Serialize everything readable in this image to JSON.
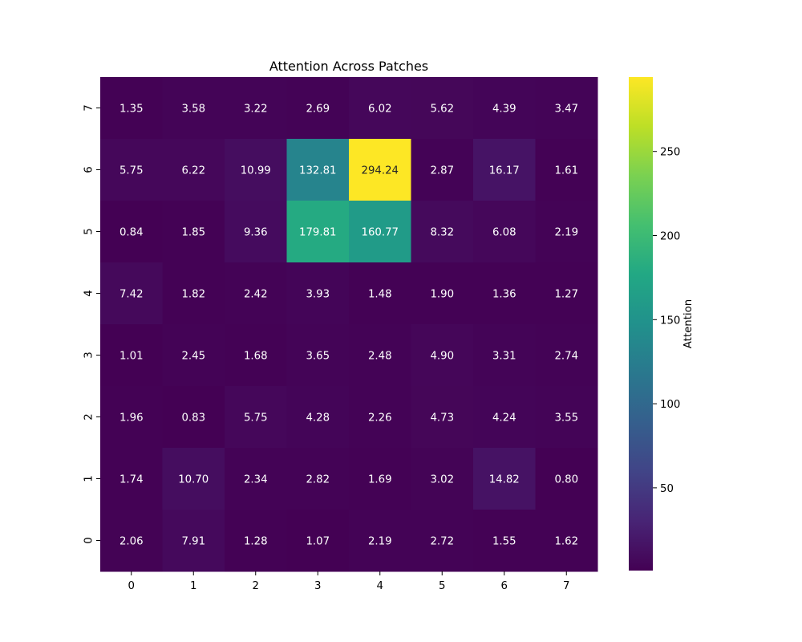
{
  "chart_data": {
    "type": "heatmap",
    "title": "Attention Across Patches",
    "xlabel": "",
    "ylabel": "",
    "x_ticks": [
      "0",
      "1",
      "2",
      "3",
      "4",
      "5",
      "6",
      "7"
    ],
    "y_ticks_top_to_bottom": [
      "7",
      "6",
      "5",
      "4",
      "3",
      "2",
      "1",
      "0"
    ],
    "rows_top_to_bottom": [
      [
        1.35,
        3.58,
        3.22,
        2.69,
        6.02,
        5.62,
        4.39,
        3.47
      ],
      [
        5.75,
        6.22,
        10.99,
        132.81,
        294.24,
        2.87,
        16.17,
        1.61
      ],
      [
        0.84,
        1.85,
        9.36,
        179.81,
        160.77,
        8.32,
        6.08,
        2.19
      ],
      [
        7.42,
        1.82,
        2.42,
        3.93,
        1.48,
        1.9,
        1.36,
        1.27
      ],
      [
        1.01,
        2.45,
        1.68,
        3.65,
        2.48,
        4.9,
        3.31,
        2.74
      ],
      [
        1.96,
        0.83,
        5.75,
        4.28,
        2.26,
        4.73,
        4.24,
        3.55
      ],
      [
        1.74,
        10.7,
        2.34,
        2.82,
        1.69,
        3.02,
        14.82,
        0.8
      ],
      [
        2.06,
        7.91,
        1.28,
        1.07,
        2.19,
        2.72,
        1.55,
        1.62
      ]
    ],
    "value_format": "2-decimal",
    "colormap": "viridis",
    "colorbar": {
      "label": "Attention",
      "range": [
        0.8,
        294.24
      ],
      "ticks": [
        "50",
        "100",
        "150",
        "200",
        "250"
      ],
      "tick_values": [
        50,
        100,
        150,
        200,
        250
      ]
    },
    "grid": false
  }
}
